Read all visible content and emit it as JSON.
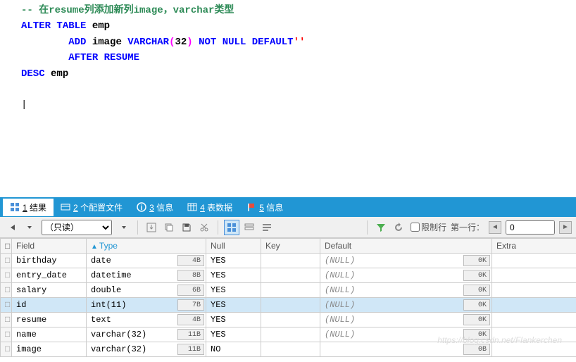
{
  "editor": {
    "comment_line": "-- 在resume列添加新列image，varchar类型",
    "line1": {
      "kw1": "ALTER",
      "kw2": "TABLE",
      "id": "emp"
    },
    "line2": {
      "kw1": "ADD",
      "id": "image",
      "kw2": "VARCHAR",
      "lp": "(",
      "arg": "32",
      "rp": ")",
      "kw3": "NOT",
      "kw4": "NULL",
      "kw5": "DEFAULT",
      "str": "''"
    },
    "line3": {
      "kw1": "AFTER",
      "kw2": "RESUME"
    },
    "line4": {
      "kw1": "DESC",
      "id": "emp"
    },
    "cursor": "|"
  },
  "tabs": {
    "t1": {
      "num": "1",
      "label": "结果"
    },
    "t2": {
      "num": "2",
      "label": "个配置文件"
    },
    "t3": {
      "num": "3",
      "label": "信息"
    },
    "t4": {
      "num": "4",
      "label": "表数据"
    },
    "t5": {
      "num": "5",
      "label": "信息"
    }
  },
  "toolbar": {
    "readonly": "（只读）",
    "limit_label": "限制行",
    "firstrow_label": "第一行：",
    "firstrow_value": "0"
  },
  "table": {
    "headers": {
      "field": "Field",
      "type": "Type",
      "null": "Null",
      "key": "Key",
      "default": "Default",
      "extra": "Extra"
    },
    "rows": [
      {
        "field": "birthday",
        "type": "date",
        "size": "4B",
        "null": "YES",
        "key": "",
        "default": "(NULL)",
        "dbtn": "0K",
        "extra": "",
        "selected": false
      },
      {
        "field": "entry_date",
        "type": "datetime",
        "size": "8B",
        "null": "YES",
        "key": "",
        "default": "(NULL)",
        "dbtn": "0K",
        "extra": "",
        "selected": false
      },
      {
        "field": "salary",
        "type": "double",
        "size": "6B",
        "null": "YES",
        "key": "",
        "default": "(NULL)",
        "dbtn": "0K",
        "extra": "",
        "selected": false
      },
      {
        "field": "id",
        "type": "int(11)",
        "size": "7B",
        "null": "YES",
        "key": "",
        "default": "(NULL)",
        "dbtn": "0K",
        "extra": "",
        "selected": true
      },
      {
        "field": "resume",
        "type": "text",
        "size": "4B",
        "null": "YES",
        "key": "",
        "default": "(NULL)",
        "dbtn": "0K",
        "extra": "",
        "selected": false
      },
      {
        "field": "name",
        "type": "varchar(32)",
        "size": "11B",
        "null": "YES",
        "key": "",
        "default": "(NULL)",
        "dbtn": "0K",
        "extra": "",
        "selected": false
      },
      {
        "field": "image",
        "type": "varchar(32)",
        "size": "11B",
        "null": "NO",
        "key": "",
        "default": "",
        "dbtn": "0B",
        "extra": "",
        "selected": false
      }
    ]
  },
  "watermark": "https://blog.csdn.net/Flankerchen",
  "colors": {
    "tab_bg": "#2196d4",
    "selected_row": "#d0e7f7",
    "keyword": "#0000ff",
    "keyword2": "#ff00ff",
    "comment": "#2e8b57",
    "string": "#ff0000"
  }
}
